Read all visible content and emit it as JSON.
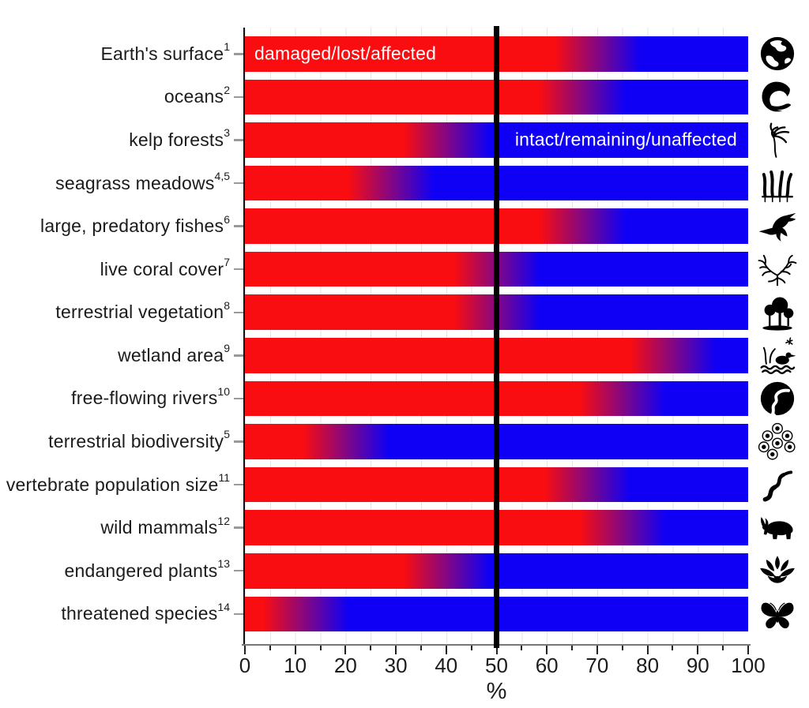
{
  "chart_data": {
    "type": "bar",
    "orientation": "horizontal-stacked-gradient",
    "title": "",
    "xlabel": "%",
    "xlim": [
      0,
      100
    ],
    "x_ticks": [
      0,
      10,
      20,
      30,
      40,
      50,
      60,
      70,
      80,
      90,
      100
    ],
    "x_minor_tick_step": 5,
    "grid": "vertical, every 5%",
    "reference_line_x": 50,
    "series_labels": [
      "damaged/lost/affected",
      "intact/remaining/unaffected"
    ],
    "annotations": {
      "damaged_label": "damaged/lost/affected",
      "damaged_label_row": "Earth's surface",
      "intact_label": "intact/remaining/unaffected",
      "intact_label_row": "kelp forests"
    },
    "colors": {
      "damaged_red": "#fa0d10",
      "intact_blue": "#0f00f5",
      "reference_line": "#000000",
      "gridline": "#e5e5e5",
      "text": "#1c1c1c"
    },
    "categories": [
      {
        "label": "Earth's surface",
        "ref": "1",
        "damaged_pct": 70,
        "intact_pct": 30,
        "gradient_start": 61.5,
        "gradient_end": 78.5,
        "icon": "globe-icon"
      },
      {
        "label": "oceans",
        "ref": "2",
        "damaged_pct": 67,
        "intact_pct": 33,
        "gradient_start": 58.5,
        "gradient_end": 75.5,
        "icon": "ocean-wave-icon"
      },
      {
        "label": "kelp forests",
        "ref": "3",
        "damaged_pct": 40,
        "intact_pct": 60,
        "gradient_start": 31.5,
        "gradient_end": 48.5,
        "icon": "kelp-icon"
      },
      {
        "label": "seagrass meadows",
        "ref": "4,5",
        "damaged_pct": 29,
        "intact_pct": 71,
        "gradient_start": 20.5,
        "gradient_end": 37.5,
        "icon": "seagrass-icon"
      },
      {
        "label": "large, predatory fishes",
        "ref": "6",
        "damaged_pct": 67,
        "intact_pct": 33,
        "gradient_start": 58.5,
        "gradient_end": 75.5,
        "icon": "marlin-icon"
      },
      {
        "label": "live coral cover",
        "ref": "7",
        "damaged_pct": 50,
        "intact_pct": 50,
        "gradient_start": 41.5,
        "gradient_end": 58.5,
        "icon": "coral-icon"
      },
      {
        "label": "terrestrial vegetation",
        "ref": "8",
        "damaged_pct": 50,
        "intact_pct": 50,
        "gradient_start": 41.5,
        "gradient_end": 58.5,
        "icon": "trees-icon"
      },
      {
        "label": "wetland area",
        "ref": "9",
        "damaged_pct": 85,
        "intact_pct": 15,
        "gradient_start": 76.5,
        "gradient_end": 93.5,
        "icon": "wetland-duck-icon"
      },
      {
        "label": "free-flowing rivers",
        "ref": "10",
        "damaged_pct": 75,
        "intact_pct": 25,
        "gradient_start": 66.5,
        "gradient_end": 83.5,
        "icon": "river-icon"
      },
      {
        "label": "terrestrial biodiversity",
        "ref": "5",
        "damaged_pct": 20,
        "intact_pct": 80,
        "gradient_start": 11.5,
        "gradient_end": 28.5,
        "icon": "biodiversity-circles-icon"
      },
      {
        "label": "vertebrate population size",
        "ref": "11",
        "damaged_pct": 68,
        "intact_pct": 32,
        "gradient_start": 59.5,
        "gradient_end": 76.5,
        "icon": "snake-icon"
      },
      {
        "label": "wild mammals",
        "ref": "12",
        "damaged_pct": 75,
        "intact_pct": 25,
        "gradient_start": 66.5,
        "gradient_end": 83.5,
        "icon": "rhino-icon"
      },
      {
        "label": "endangered plants",
        "ref": "13",
        "damaged_pct": 40,
        "intact_pct": 60,
        "gradient_start": 31.5,
        "gradient_end": 48.5,
        "icon": "lotus-icon"
      },
      {
        "label": "threatened species",
        "ref": "14",
        "damaged_pct": 12,
        "intact_pct": 88,
        "gradient_start": 3.5,
        "gradient_end": 20.5,
        "icon": "butterfly-icon"
      }
    ]
  }
}
